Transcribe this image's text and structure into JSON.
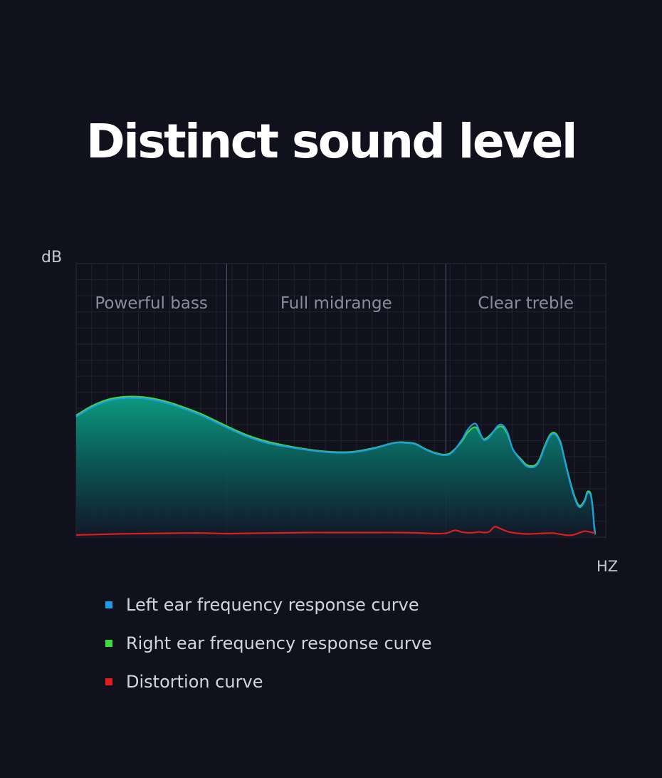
{
  "title": "Distinct sound level",
  "chart_data": {
    "type": "area",
    "ylabel": "dB",
    "xlabel": "HZ",
    "grid": true,
    "xlim": [
      0,
      100
    ],
    "ylim": [
      0,
      100
    ],
    "regions": [
      {
        "label": "Powerful bass",
        "from": 0,
        "to": 28.4
      },
      {
        "label": "Full midrange",
        "from": 28.4,
        "to": 69.8
      },
      {
        "label": "Clear treble",
        "from": 69.8,
        "to": 100
      }
    ],
    "series": [
      {
        "name": "Left ear frequency response curve",
        "color": "#1e9ae6",
        "x": [
          0,
          3,
          6,
          9,
          12,
          15,
          18,
          21,
          24,
          28,
          32,
          36,
          40,
          44,
          48,
          52,
          56,
          60,
          62,
          64,
          66,
          68,
          69.8,
          71,
          72.8,
          74,
          75.4,
          76.4,
          77,
          78,
          79.5,
          80.5,
          81.5,
          82.5,
          84,
          85,
          86,
          86.8,
          87.5,
          88.5,
          89.5,
          90.5,
          91.5,
          92,
          93,
          94,
          95,
          96,
          96.5,
          97,
          97.3,
          97.6,
          97.8,
          98
        ],
        "y": [
          44,
          47.5,
          49.8,
          50.8,
          50.8,
          50,
          48.5,
          46.5,
          44.2,
          40.5,
          37,
          34.5,
          33,
          31.8,
          31,
          31,
          32.3,
          34.4,
          34.5,
          34,
          32,
          30.5,
          30,
          31,
          35.5,
          39.5,
          41.5,
          37.5,
          35.5,
          36.5,
          40.5,
          41,
          38,
          32,
          28,
          26,
          25.5,
          26,
          28,
          33,
          37,
          37.5,
          34,
          30,
          22,
          15,
          11,
          13,
          16,
          16,
          14,
          9,
          4,
          1
        ]
      },
      {
        "name": "Right ear frequency response curve",
        "color": "#3ddc3a",
        "x": [
          0,
          3,
          6,
          9,
          12,
          15,
          18,
          21,
          24,
          28,
          32,
          36,
          40,
          44,
          48,
          52,
          56,
          60,
          62,
          64,
          66,
          68,
          69.8,
          71,
          72.8,
          74,
          75.4,
          76.4,
          77,
          78,
          79.5,
          80.5,
          81.5,
          82.5,
          84,
          85,
          86,
          86.8,
          87.5,
          88.5,
          89.5,
          90.5,
          91.5,
          92,
          93,
          94,
          95,
          96,
          96.5,
          97,
          97.3,
          97.6,
          97.8,
          98
        ],
        "y": [
          44.5,
          48,
          50.3,
          51.3,
          51.3,
          50.5,
          49,
          47,
          44.7,
          41,
          37.5,
          35,
          33.3,
          32,
          31.2,
          31.2,
          32.5,
          34.5,
          34.7,
          34.2,
          32.2,
          30.7,
          30.2,
          31.3,
          35,
          38.5,
          40.2,
          37.3,
          35.8,
          37,
          40,
          40.3,
          37.5,
          32,
          28.5,
          26.5,
          26,
          26.5,
          28.5,
          33.5,
          37.5,
          38,
          34.5,
          30.5,
          22.5,
          15.5,
          11.5,
          13.5,
          16.5,
          16.5,
          14.5,
          9.5,
          4.5,
          1.2
        ]
      },
      {
        "name": "Distortion curve",
        "color": "#e01c1c",
        "x": [
          0,
          4,
          8,
          12,
          16,
          20,
          24,
          28,
          32,
          36,
          40,
          44,
          48,
          52,
          56,
          60,
          64,
          68,
          70,
          71.5,
          73,
          74.5,
          76,
          77,
          78,
          79,
          80,
          81,
          82,
          84,
          86,
          88,
          90,
          91,
          92,
          93,
          94,
          95,
          96,
          97,
          98
        ],
        "y": [
          0.8,
          1,
          1.2,
          1.3,
          1.4,
          1.5,
          1.5,
          1.3,
          1.4,
          1.5,
          1.6,
          1.7,
          1.7,
          1.7,
          1.7,
          1.7,
          1.6,
          1.3,
          1.5,
          2.5,
          1.8,
          1.6,
          1.9,
          1.7,
          2,
          3.8,
          3.2,
          2.4,
          1.8,
          1.3,
          1.2,
          1.4,
          1.5,
          1.2,
          0.9,
          0.7,
          0.9,
          1.6,
          2.2,
          1.9,
          1.5
        ]
      }
    ]
  }
}
